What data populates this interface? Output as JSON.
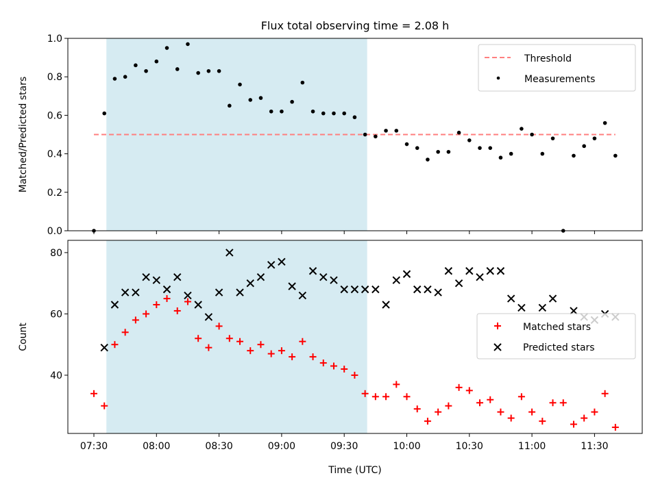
{
  "figure_title": "Flux total observing time = 2.08 h",
  "colors": {
    "shade": "#add8e6",
    "threshold": "#ff7f7f",
    "matched": "#ff0000",
    "predicted": "#000000",
    "measurement": "#000000"
  },
  "chart_data": [
    {
      "type": "scatter",
      "title": "",
      "xlabel": "",
      "ylabel": "Matched/Predicted stars",
      "ylim": [
        0.0,
        1.0
      ],
      "yticks": [
        "0.0",
        "0.2",
        "0.4",
        "0.6",
        "0.8",
        "1.0"
      ],
      "grid": false,
      "legend_position": "top-right",
      "shaded_span": [
        "07:36",
        "09:41"
      ],
      "threshold": {
        "name": "Threshold",
        "y": 0.5,
        "x_range": [
          "07:30",
          "11:40"
        ],
        "style": "dashed"
      },
      "series": [
        {
          "name": "Measurements",
          "marker": "dot",
          "points": [
            [
              "07:30",
              0.0
            ],
            [
              "07:35",
              0.61
            ],
            [
              "07:40",
              0.79
            ],
            [
              "07:45",
              0.8
            ],
            [
              "07:50",
              0.86
            ],
            [
              "07:55",
              0.83
            ],
            [
              "08:00",
              0.88
            ],
            [
              "08:05",
              0.95
            ],
            [
              "08:10",
              0.84
            ],
            [
              "08:15",
              0.97
            ],
            [
              "08:20",
              0.82
            ],
            [
              "08:25",
              0.83
            ],
            [
              "08:30",
              0.83
            ],
            [
              "08:35",
              0.65
            ],
            [
              "08:40",
              0.76
            ],
            [
              "08:45",
              0.68
            ],
            [
              "08:50",
              0.69
            ],
            [
              "08:55",
              0.62
            ],
            [
              "09:00",
              0.62
            ],
            [
              "09:05",
              0.67
            ],
            [
              "09:10",
              0.77
            ],
            [
              "09:15",
              0.62
            ],
            [
              "09:20",
              0.61
            ],
            [
              "09:25",
              0.61
            ],
            [
              "09:30",
              0.61
            ],
            [
              "09:35",
              0.59
            ],
            [
              "09:40",
              0.5
            ],
            [
              "09:45",
              0.49
            ],
            [
              "09:50",
              0.52
            ],
            [
              "09:55",
              0.52
            ],
            [
              "10:00",
              0.45
            ],
            [
              "10:05",
              0.43
            ],
            [
              "10:10",
              0.37
            ],
            [
              "10:15",
              0.41
            ],
            [
              "10:20",
              0.41
            ],
            [
              "10:25",
              0.51
            ],
            [
              "10:30",
              0.47
            ],
            [
              "10:35",
              0.43
            ],
            [
              "10:40",
              0.43
            ],
            [
              "10:45",
              0.38
            ],
            [
              "10:50",
              0.4
            ],
            [
              "10:55",
              0.53
            ],
            [
              "11:00",
              0.5
            ],
            [
              "11:05",
              0.4
            ],
            [
              "11:10",
              0.48
            ],
            [
              "11:15",
              0.0
            ],
            [
              "11:20",
              0.39
            ],
            [
              "11:25",
              0.44
            ],
            [
              "11:30",
              0.48
            ],
            [
              "11:35",
              0.56
            ],
            [
              "11:40",
              0.39
            ]
          ]
        }
      ]
    },
    {
      "type": "scatter",
      "title": "",
      "xlabel": "Time (UTC)",
      "ylabel": "Count",
      "ylim": [
        21,
        84
      ],
      "yticks": [
        "40",
        "60",
        "80"
      ],
      "xticks": [
        "07:30",
        "08:00",
        "08:30",
        "09:00",
        "09:30",
        "10:00",
        "10:30",
        "11:00",
        "11:30"
      ],
      "grid": false,
      "legend_position": "center-right",
      "shaded_span": [
        "07:36",
        "09:41"
      ],
      "series": [
        {
          "name": "Matched stars",
          "marker": "plus",
          "points": [
            [
              "07:30",
              34
            ],
            [
              "07:35",
              30
            ],
            [
              "07:40",
              50
            ],
            [
              "07:45",
              54
            ],
            [
              "07:50",
              58
            ],
            [
              "07:55",
              60
            ],
            [
              "08:00",
              63
            ],
            [
              "08:05",
              65
            ],
            [
              "08:10",
              61
            ],
            [
              "08:15",
              64
            ],
            [
              "08:20",
              52
            ],
            [
              "08:25",
              49
            ],
            [
              "08:30",
              56
            ],
            [
              "08:35",
              52
            ],
            [
              "08:40",
              51
            ],
            [
              "08:45",
              48
            ],
            [
              "08:50",
              50
            ],
            [
              "08:55",
              47
            ],
            [
              "09:00",
              48
            ],
            [
              "09:05",
              46
            ],
            [
              "09:10",
              51
            ],
            [
              "09:15",
              46
            ],
            [
              "09:20",
              44
            ],
            [
              "09:25",
              43
            ],
            [
              "09:30",
              42
            ],
            [
              "09:35",
              40
            ],
            [
              "09:40",
              34
            ],
            [
              "09:45",
              33
            ],
            [
              "09:50",
              33
            ],
            [
              "09:55",
              37
            ],
            [
              "10:00",
              33
            ],
            [
              "10:05",
              29
            ],
            [
              "10:10",
              25
            ],
            [
              "10:15",
              28
            ],
            [
              "10:20",
              30
            ],
            [
              "10:25",
              36
            ],
            [
              "10:30",
              35
            ],
            [
              "10:35",
              31
            ],
            [
              "10:40",
              32
            ],
            [
              "10:45",
              28
            ],
            [
              "10:50",
              26
            ],
            [
              "10:55",
              33
            ],
            [
              "11:00",
              28
            ],
            [
              "11:05",
              25
            ],
            [
              "11:10",
              31
            ],
            [
              "11:15",
              31
            ],
            [
              "11:20",
              24
            ],
            [
              "11:25",
              26
            ],
            [
              "11:30",
              28
            ],
            [
              "11:35",
              34
            ],
            [
              "11:40",
              23
            ]
          ]
        },
        {
          "name": "Predicted stars",
          "marker": "x",
          "points": [
            [
              "07:35",
              49
            ],
            [
              "07:40",
              63
            ],
            [
              "07:45",
              67
            ],
            [
              "07:50",
              67
            ],
            [
              "07:55",
              72
            ],
            [
              "08:00",
              71
            ],
            [
              "08:05",
              68
            ],
            [
              "08:10",
              72
            ],
            [
              "08:15",
              66
            ],
            [
              "08:20",
              63
            ],
            [
              "08:25",
              59
            ],
            [
              "08:30",
              67
            ],
            [
              "08:35",
              80
            ],
            [
              "08:40",
              67
            ],
            [
              "08:45",
              70
            ],
            [
              "08:50",
              72
            ],
            [
              "08:55",
              76
            ],
            [
              "09:00",
              77
            ],
            [
              "09:05",
              69
            ],
            [
              "09:10",
              66
            ],
            [
              "09:15",
              74
            ],
            [
              "09:20",
              72
            ],
            [
              "09:25",
              71
            ],
            [
              "09:30",
              68
            ],
            [
              "09:35",
              68
            ],
            [
              "09:40",
              68
            ],
            [
              "09:45",
              68
            ],
            [
              "09:50",
              63
            ],
            [
              "09:55",
              71
            ],
            [
              "10:00",
              73
            ],
            [
              "10:05",
              68
            ],
            [
              "10:10",
              68
            ],
            [
              "10:15",
              67
            ],
            [
              "10:20",
              74
            ],
            [
              "10:25",
              70
            ],
            [
              "10:30",
              74
            ],
            [
              "10:35",
              72
            ],
            [
              "10:40",
              74
            ],
            [
              "10:45",
              74
            ],
            [
              "10:50",
              65
            ],
            [
              "10:55",
              62
            ],
            [
              "11:05",
              62
            ],
            [
              "11:10",
              65
            ],
            [
              "11:20",
              61
            ],
            [
              "11:25",
              59
            ],
            [
              "11:30",
              58
            ],
            [
              "11:35",
              60
            ],
            [
              "11:40",
              59
            ]
          ]
        }
      ]
    }
  ]
}
